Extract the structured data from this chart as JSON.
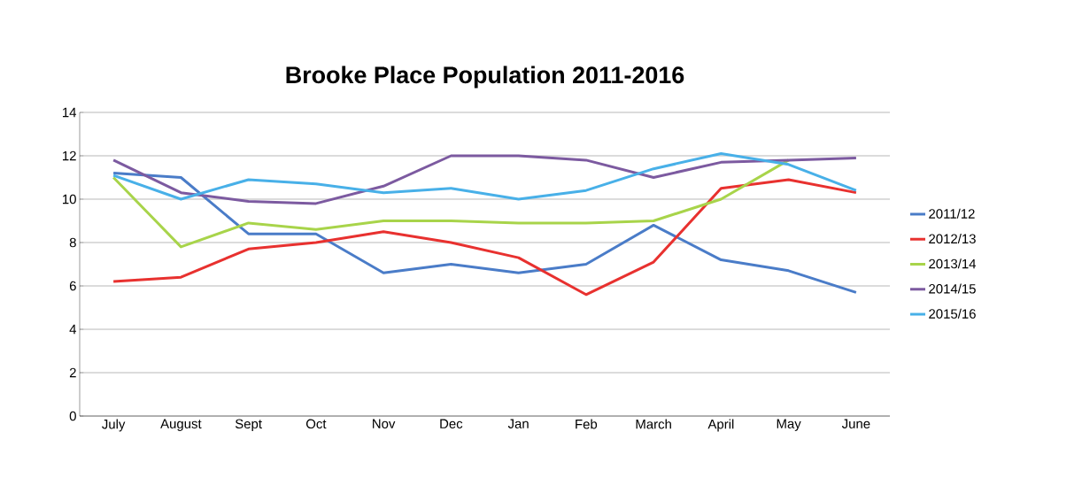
{
  "chart_data": {
    "type": "line",
    "title": "Brooke Place Population 2011-2016",
    "categories": [
      "July",
      "August",
      "Sept",
      "Oct",
      "Nov",
      "Dec",
      "Jan",
      "Feb",
      "March",
      "April",
      "May",
      "June"
    ],
    "series": [
      {
        "name": "2011/12",
        "color": "#4a7cc8",
        "values": [
          11.2,
          11.0,
          8.4,
          8.4,
          6.6,
          7.0,
          6.6,
          7.0,
          8.8,
          7.2,
          6.7,
          5.7
        ]
      },
      {
        "name": "2012/13",
        "color": "#e8312f",
        "values": [
          6.2,
          6.4,
          7.7,
          8.0,
          8.5,
          8.0,
          7.3,
          5.6,
          7.1,
          10.5,
          10.9,
          10.3
        ]
      },
      {
        "name": "2013/14",
        "color": "#a8d44a",
        "values": [
          11.0,
          7.8,
          8.9,
          8.6,
          9.0,
          9.0,
          8.9,
          8.9,
          9.0,
          10.0,
          11.8,
          null
        ]
      },
      {
        "name": "2014/15",
        "color": "#7c5aa0",
        "values": [
          11.8,
          10.3,
          9.9,
          9.8,
          10.6,
          12.0,
          12.0,
          11.8,
          11.0,
          11.7,
          11.8,
          11.9
        ]
      },
      {
        "name": "2015/16",
        "color": "#48b0e8",
        "values": [
          11.1,
          10.0,
          10.9,
          10.7,
          10.3,
          10.5,
          10.0,
          10.4,
          11.4,
          12.1,
          11.6,
          10.4
        ]
      }
    ],
    "ylim": [
      0,
      14
    ],
    "yticks": [
      0,
      2,
      4,
      6,
      8,
      10,
      12,
      14
    ],
    "grid": "y",
    "legend": "right",
    "marker": "none",
    "line_style": "solid"
  }
}
